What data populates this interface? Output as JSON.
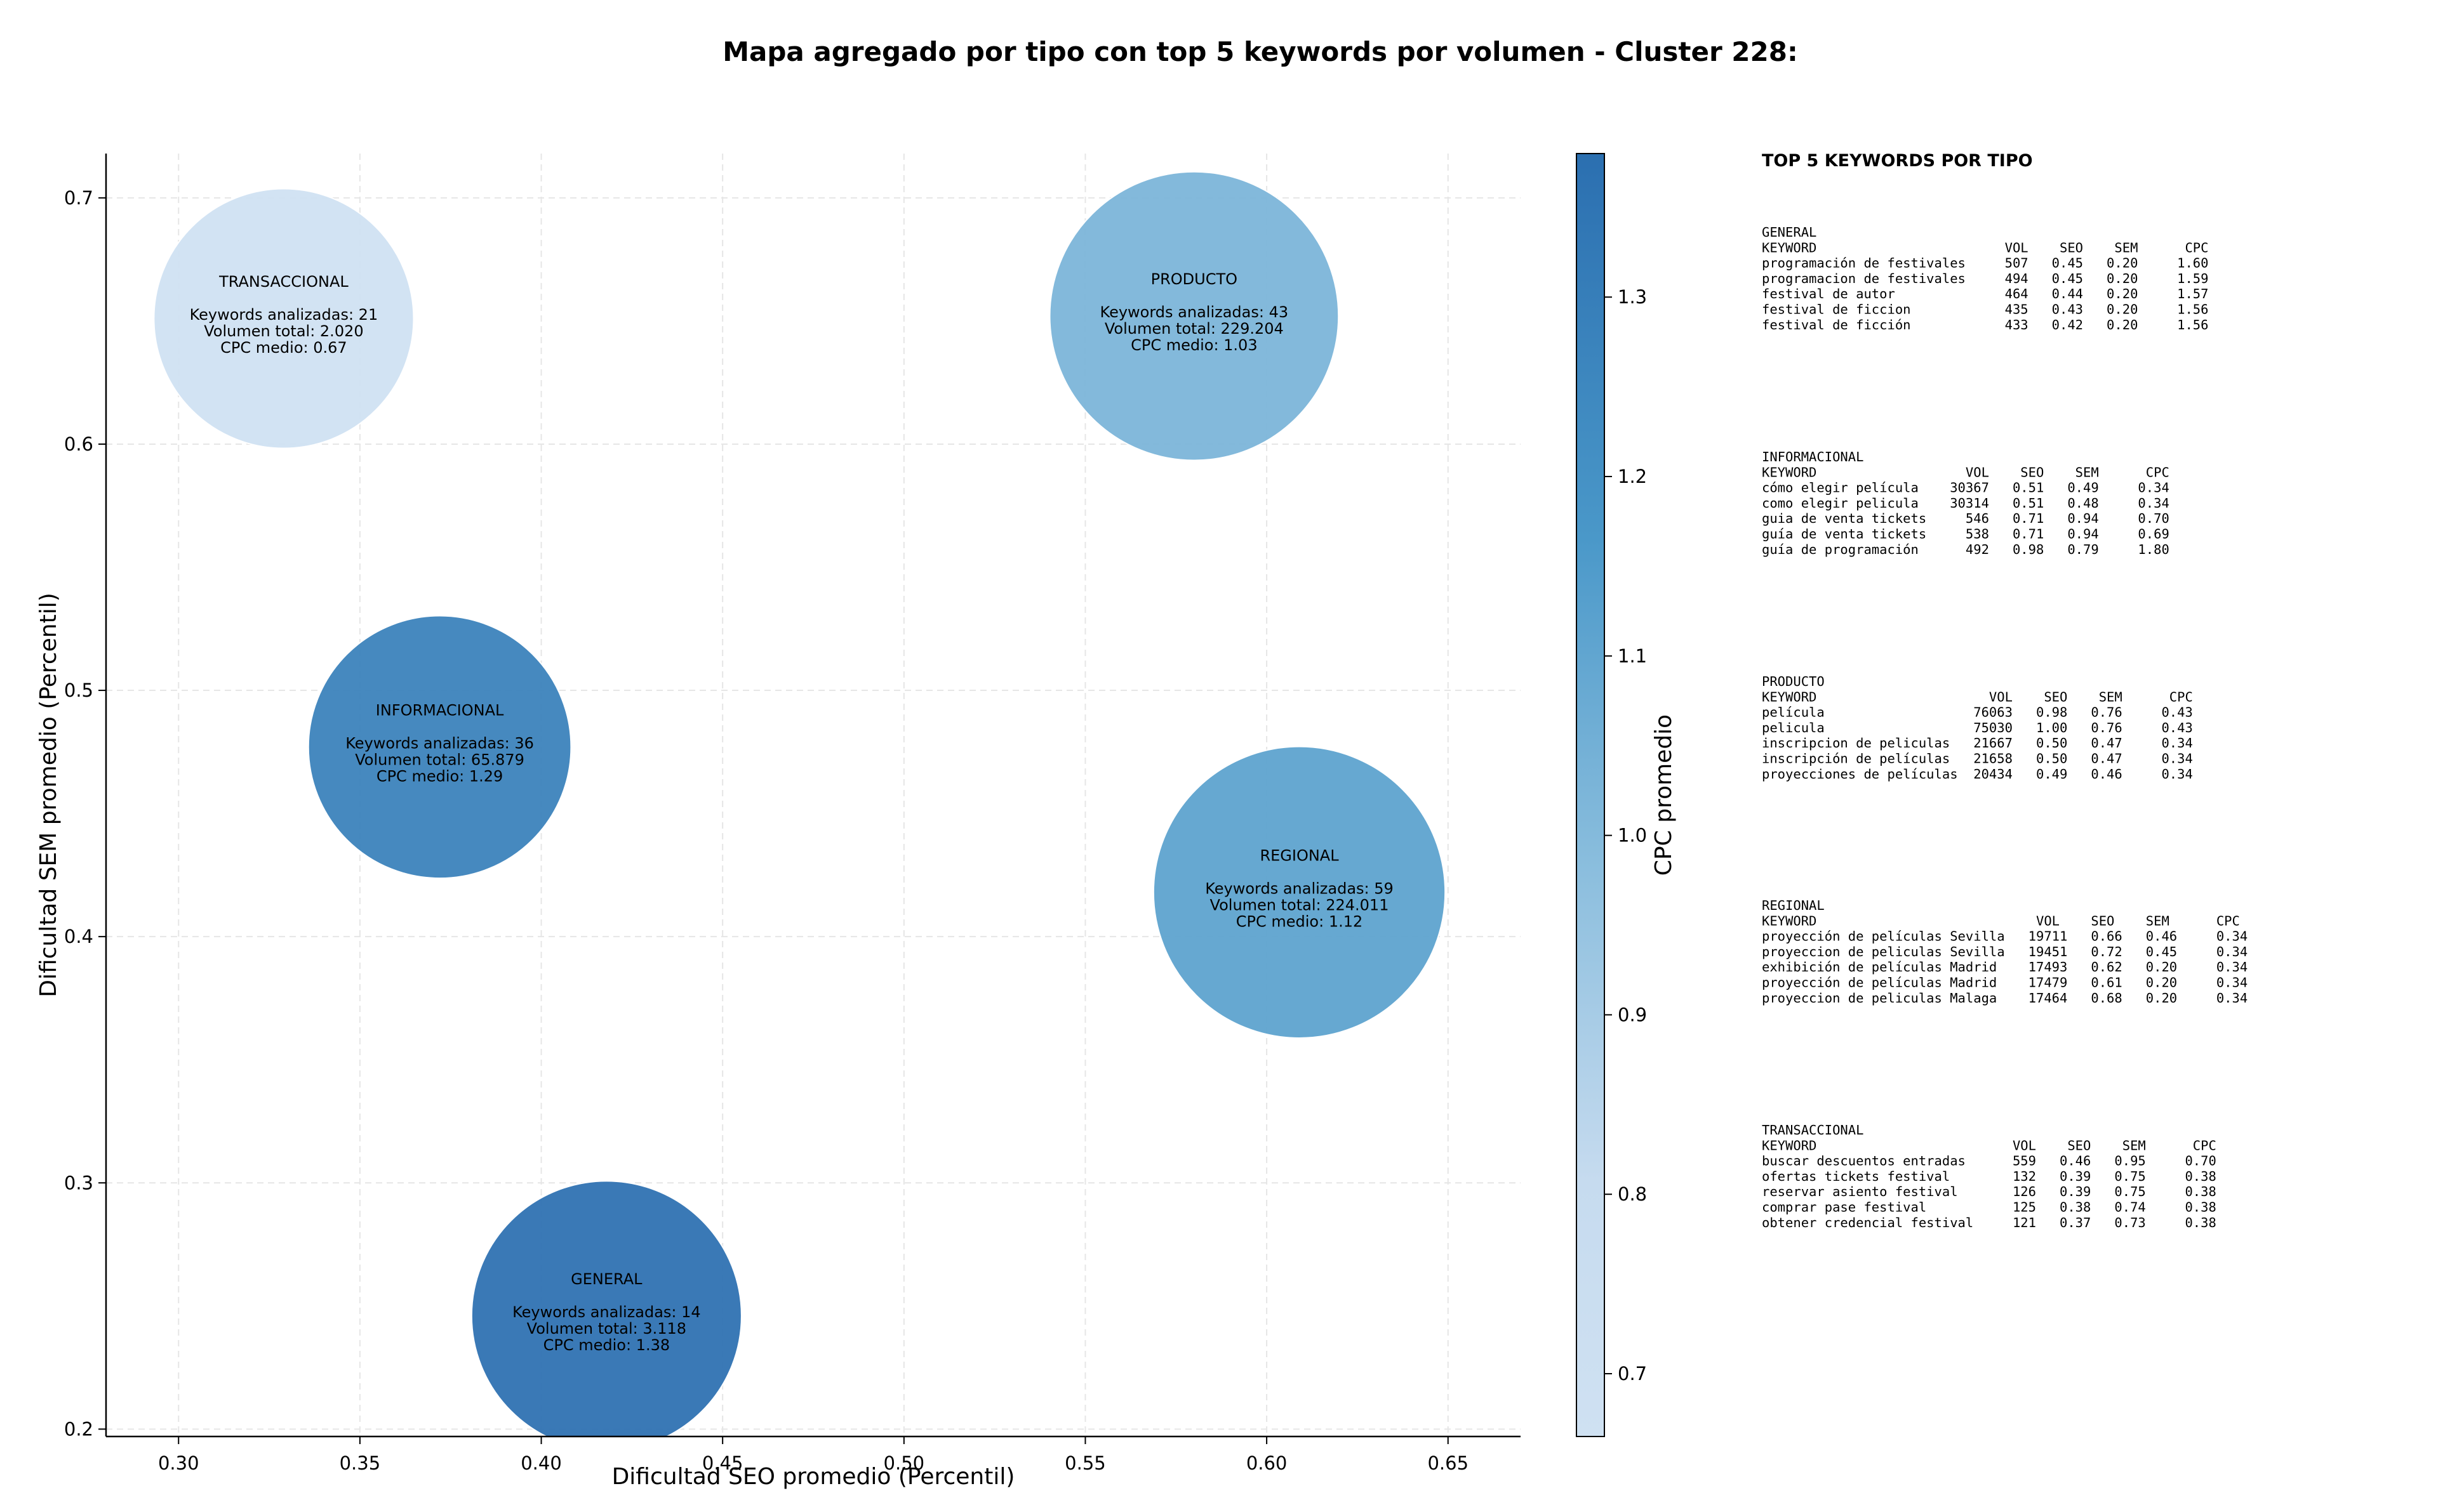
{
  "title": "Mapa agregado por tipo con top 5 keywords por volumen - Cluster 228:",
  "chart_data": {
    "type": "scatter",
    "title": "Mapa agregado por tipo con top 5 keywords por volumen - Cluster 228:",
    "xlabel": "Dificultad SEO promedio (Percentil)",
    "ylabel": "Dificultad SEM promedio (Percentil)",
    "xlim": [
      0.28,
      0.67
    ],
    "ylim": [
      0.197,
      0.718
    ],
    "x_ticks": [
      "0.30",
      "0.35",
      "0.40",
      "0.45",
      "0.50",
      "0.55",
      "0.60",
      "0.65"
    ],
    "y_ticks": [
      "0.2",
      "0.3",
      "0.4",
      "0.5",
      "0.6",
      "0.7"
    ],
    "grid": true,
    "colorbar": {
      "label": "CPC promedio",
      "min": 0.665,
      "max": 1.38,
      "ticks": [
        "0.7",
        "0.8",
        "0.9",
        "1.0",
        "1.1",
        "1.2",
        "1.3"
      ]
    },
    "points": [
      {
        "name": "TRANSACCIONAL",
        "x": 0.329,
        "y": 0.651,
        "cpc": 0.67,
        "radius": 0.0358,
        "lines": [
          "Keywords analizadas: 21",
          "Volumen total: 2.020",
          "CPC medio: 0.67"
        ]
      },
      {
        "name": "PRODUCTO",
        "x": 0.58,
        "y": 0.652,
        "cpc": 1.03,
        "radius": 0.0398,
        "lines": [
          "Keywords analizadas: 43",
          "Volumen total: 229.204",
          "CPC medio: 1.03"
        ]
      },
      {
        "name": "INFORMACIONAL",
        "x": 0.372,
        "y": 0.477,
        "cpc": 1.29,
        "radius": 0.0362,
        "lines": [
          "Keywords analizadas: 36",
          "Volumen total: 65.879",
          "CPC medio: 1.29"
        ]
      },
      {
        "name": "REGIONAL",
        "x": 0.609,
        "y": 0.418,
        "cpc": 1.12,
        "radius": 0.0402,
        "lines": [
          "Keywords analizadas: 59",
          "Volumen total: 224.011",
          "CPC medio: 1.12"
        ]
      },
      {
        "name": "GENERAL",
        "x": 0.418,
        "y": 0.246,
        "cpc": 1.38,
        "radius": 0.0372,
        "lines": [
          "Keywords analizadas: 14",
          "Volumen total: 3.118",
          "CPC medio: 1.38"
        ]
      }
    ]
  },
  "side_panel": {
    "heading": "TOP 5 KEYWORDS POR TIPO",
    "tables": [
      {
        "title": "GENERAL",
        "header": "KEYWORD                        VOL    SEO    SEM      CPC",
        "rows": [
          "programación de festivales     507   0.45   0.20     1.60",
          "programacion de festivales     494   0.45   0.20     1.59",
          "festival de autor              464   0.44   0.20     1.57",
          "festival de ficcion            435   0.43   0.20     1.56",
          "festival de ficción            433   0.42   0.20     1.56"
        ]
      },
      {
        "title": "INFORMACIONAL",
        "header": "KEYWORD                   VOL    SEO    SEM      CPC",
        "rows": [
          "cómo elegir película    30367   0.51   0.49     0.34",
          "como elegir pelicula    30314   0.51   0.48     0.34",
          "guia de venta tickets     546   0.71   0.94     0.70",
          "guía de venta tickets     538   0.71   0.94     0.69",
          "guía de programación      492   0.98   0.79     1.80"
        ]
      },
      {
        "title": "PRODUCTO",
        "header": "KEYWORD                      VOL    SEO    SEM      CPC",
        "rows": [
          "película                   76063   0.98   0.76     0.43",
          "pelicula                   75030   1.00   0.76     0.43",
          "inscripcion de peliculas   21667   0.50   0.47     0.34",
          "inscripción de películas   21658   0.50   0.47     0.34",
          "proyecciones de películas  20434   0.49   0.46     0.34"
        ]
      },
      {
        "title": "REGIONAL",
        "header": "KEYWORD                            VOL    SEO    SEM      CPC",
        "rows": [
          "proyección de películas Sevilla   19711   0.66   0.46     0.34",
          "proyeccion de peliculas Sevilla   19451   0.72   0.45     0.34",
          "exhibición de películas Madrid    17493   0.62   0.20     0.34",
          "proyección de películas Madrid    17479   0.61   0.20     0.34",
          "proyeccion de peliculas Malaga    17464   0.68   0.20     0.34"
        ]
      },
      {
        "title": "TRANSACCIONAL",
        "header": "KEYWORD                         VOL    SEO    SEM      CPC",
        "rows": [
          "buscar descuentos entradas      559   0.46   0.95     0.70",
          "ofertas tickets festival        132   0.39   0.75     0.38",
          "reservar asiento festival       126   0.39   0.75     0.38",
          "comprar pase festival           125   0.38   0.74     0.38",
          "obtener credencial festival     121   0.37   0.73     0.38"
        ]
      }
    ]
  }
}
